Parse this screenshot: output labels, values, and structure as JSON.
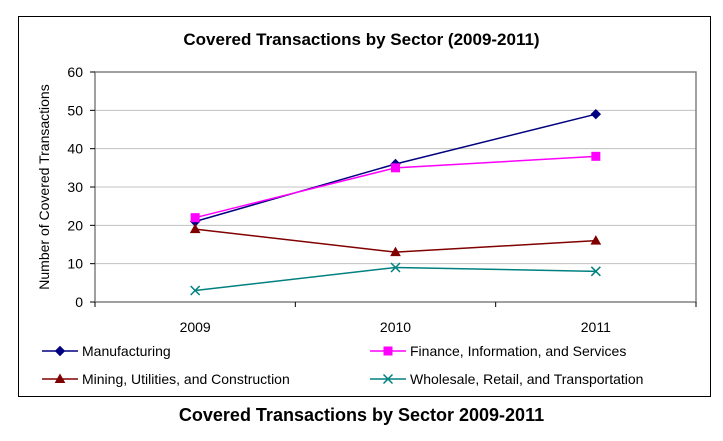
{
  "caption": "Covered Transactions by Sector 2009-2011",
  "colors": {
    "plot_border": "#808080",
    "gridline": "#c0c0c0"
  },
  "chart_data": {
    "type": "line",
    "title": "Covered Transactions by Sector (2009-2011)",
    "xlabel": "",
    "ylabel": "Number of Covered Transactions",
    "x": [
      "2009",
      "2010",
      "2011"
    ],
    "ylim": [
      0,
      60
    ],
    "yticks": [
      0,
      10,
      20,
      30,
      40,
      50,
      60
    ],
    "grid": true,
    "legend_placement": "bottom",
    "series": [
      {
        "name": "Manufacturing",
        "values": [
          21,
          36,
          49
        ],
        "color": "#000080",
        "marker": "diamond"
      },
      {
        "name": "Finance, Information, and Services",
        "values": [
          22,
          35,
          38
        ],
        "color": "#ff00ff",
        "marker": "square"
      },
      {
        "name": "Mining, Utilities, and Construction",
        "values": [
          19,
          13,
          16
        ],
        "color": "#800000",
        "marker": "triangle"
      },
      {
        "name": "Wholesale, Retail, and Transportation",
        "values": [
          3,
          9,
          8
        ],
        "color": "#008080",
        "marker": "x"
      }
    ]
  }
}
